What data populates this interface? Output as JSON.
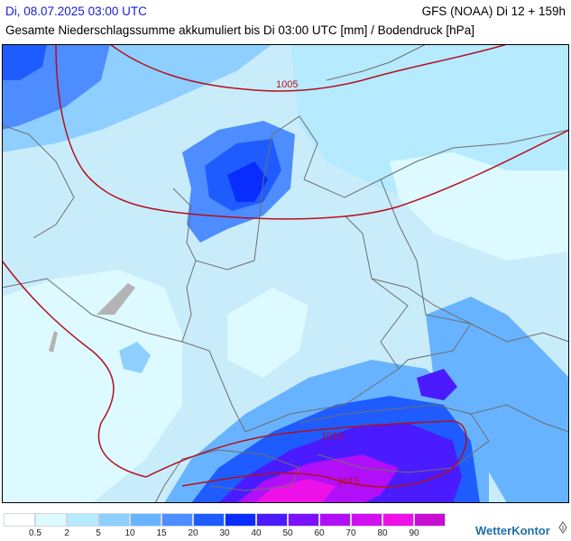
{
  "header": {
    "date": "Di, 08.07.2025 03:00 UTC",
    "model": "GFS (NOAA) Di 12 + 159h",
    "title": "Gesamte Niederschlagssumme akkumuliert bis Di 03:00 UTC [mm] / Bodendruck [hPa]"
  },
  "isobars": {
    "labels": [
      "1005",
      "1015",
      "1015"
    ],
    "color": "#b40f1e"
  },
  "legend": {
    "swatches": [
      "#ffffff",
      "#dcfaff",
      "#b5eaff",
      "#8ecfff",
      "#68b3ff",
      "#4d8dff",
      "#1f5cff",
      "#0a2dff",
      "#4a1bff",
      "#7d10ff",
      "#b10ff7",
      "#d20ff0",
      "#ee10e8",
      "#c80ed2"
    ],
    "labels": [
      "0.5",
      "2",
      "5",
      "10",
      "15",
      "20",
      "30",
      "40",
      "50",
      "60",
      "70",
      "80",
      "90"
    ]
  },
  "logo": {
    "text": "WetterKontor",
    "icon": "info-icon"
  },
  "colors": {
    "date_text": "#1a1ad0",
    "map_border_lines": "#6e6e6e",
    "logo": "#1f6ea8"
  }
}
